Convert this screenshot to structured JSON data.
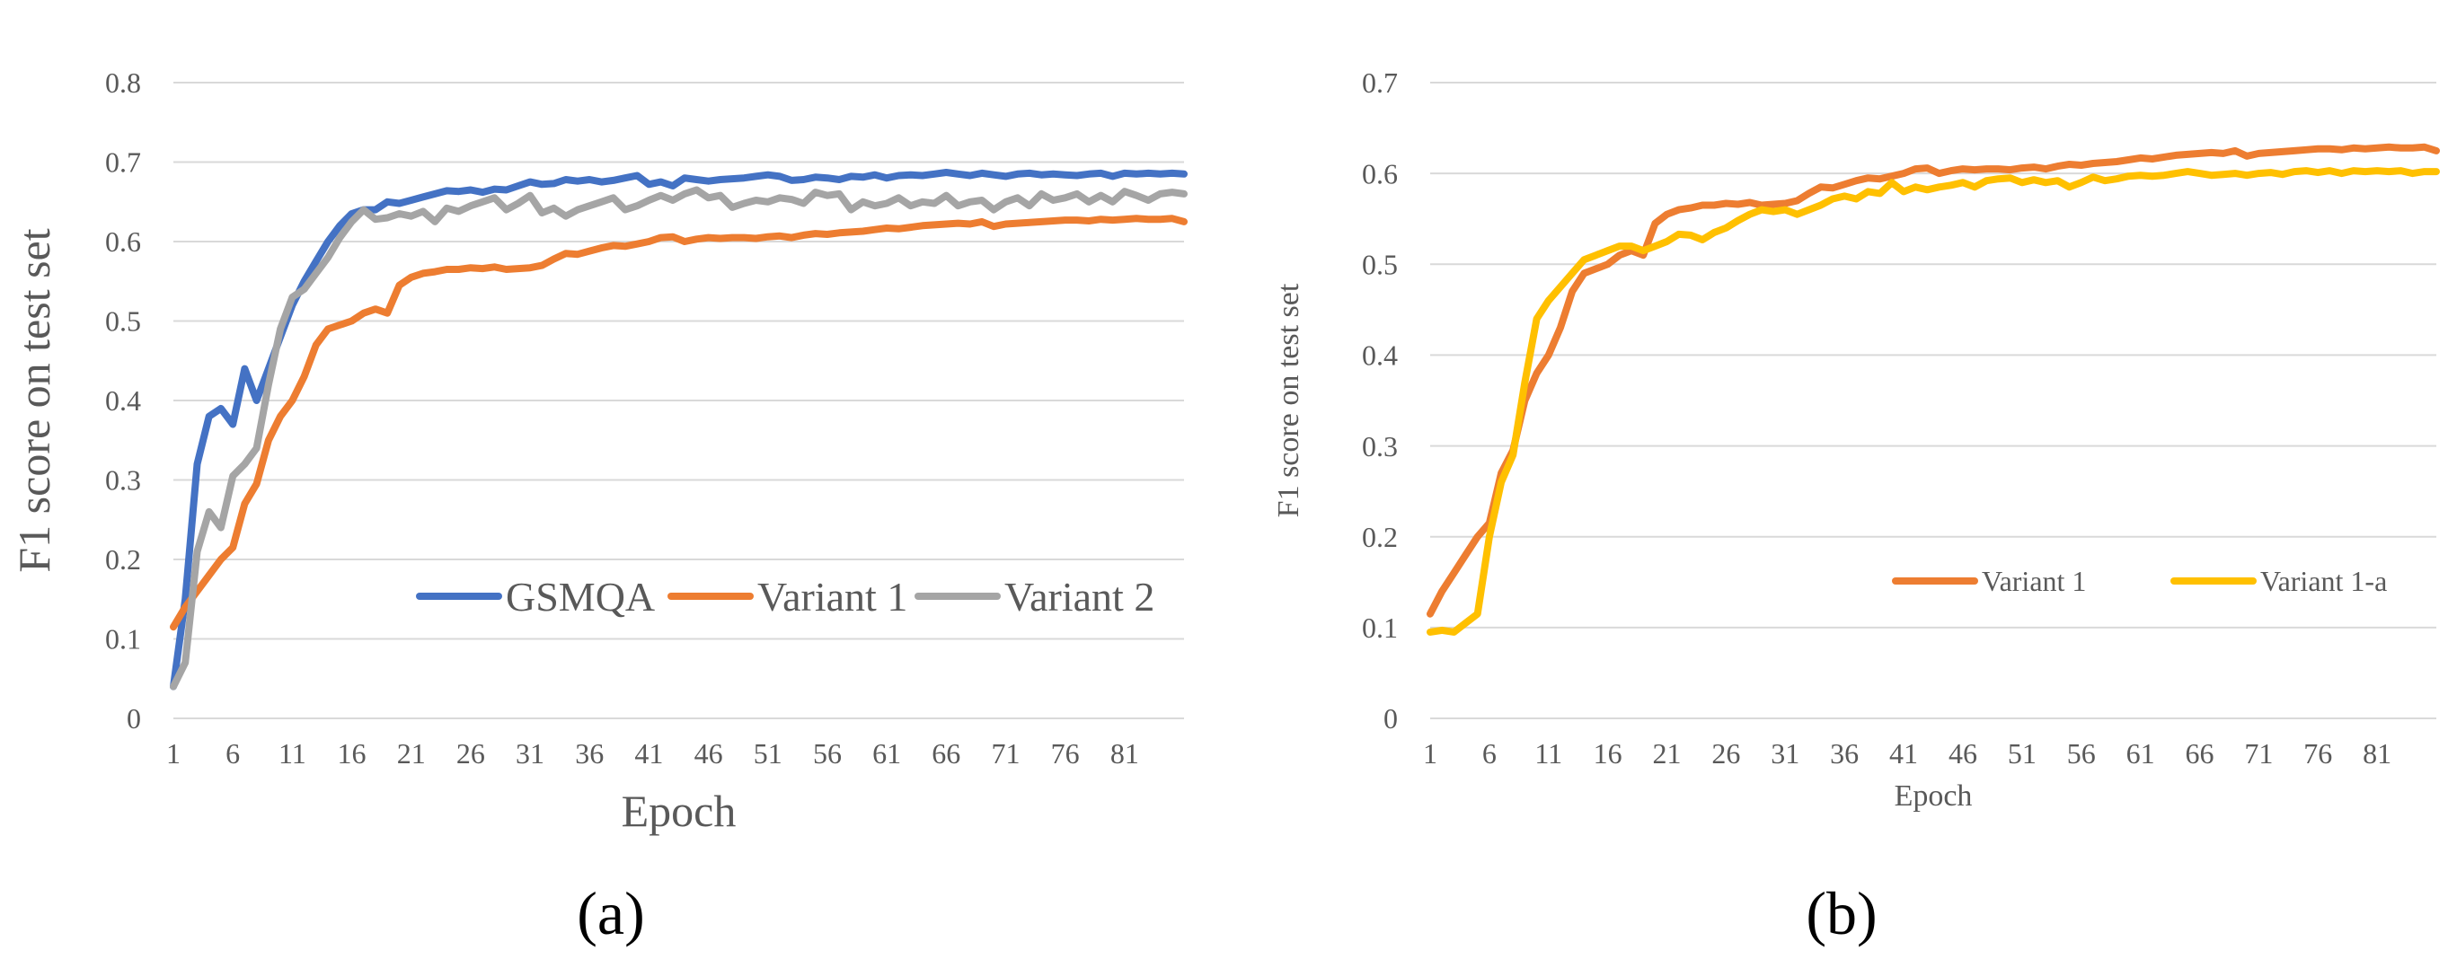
{
  "panels": {
    "a": "(a)",
    "b": "(b)"
  },
  "chart_data": [
    {
      "type": "line",
      "title": "",
      "xlabel": "Epoch",
      "ylabel": "F1 score on test set",
      "ylim": [
        0,
        0.8
      ],
      "yticks": [
        "0",
        "0.1",
        "0.2",
        "0.3",
        "0.4",
        "0.5",
        "0.6",
        "0.7",
        "0.8"
      ],
      "xticks": [
        "1",
        "6",
        "11",
        "16",
        "21",
        "26",
        "31",
        "36",
        "41",
        "46",
        "51",
        "56",
        "61",
        "66",
        "71",
        "76",
        "81"
      ],
      "xlim": [
        1,
        86
      ],
      "legend_position": "bottom-right",
      "series": [
        {
          "name": "GSMQA",
          "color": "#4472C4",
          "values": [
            0.04,
            0.15,
            0.32,
            0.38,
            0.39,
            0.37,
            0.44,
            0.4,
            0.44,
            0.48,
            0.52,
            0.55,
            0.575,
            0.6,
            0.62,
            0.635,
            0.64,
            0.64,
            0.65,
            0.648,
            0.652,
            0.656,
            0.66,
            0.664,
            0.663,
            0.665,
            0.662,
            0.666,
            0.665,
            0.67,
            0.675,
            0.672,
            0.673,
            0.678,
            0.676,
            0.678,
            0.675,
            0.677,
            0.68,
            0.683,
            0.672,
            0.675,
            0.67,
            0.68,
            0.678,
            0.676,
            0.678,
            0.679,
            0.68,
            0.682,
            0.684,
            0.682,
            0.677,
            0.678,
            0.681,
            0.68,
            0.678,
            0.682,
            0.681,
            0.684,
            0.68,
            0.683,
            0.684,
            0.683,
            0.685,
            0.687,
            0.685,
            0.683,
            0.686,
            0.684,
            0.682,
            0.685,
            0.686,
            0.684,
            0.685,
            0.684,
            0.683,
            0.685,
            0.686,
            0.682,
            0.686,
            0.685,
            0.686,
            0.685,
            0.686,
            0.685
          ]
        },
        {
          "name": "Variant 1",
          "color": "#ED7D31",
          "values": [
            0.115,
            0.14,
            0.16,
            0.18,
            0.2,
            0.215,
            0.27,
            0.295,
            0.35,
            0.38,
            0.4,
            0.43,
            0.47,
            0.49,
            0.495,
            0.5,
            0.51,
            0.515,
            0.51,
            0.545,
            0.555,
            0.56,
            0.562,
            0.565,
            0.565,
            0.567,
            0.566,
            0.568,
            0.565,
            0.566,
            0.567,
            0.57,
            0.578,
            0.585,
            0.584,
            0.588,
            0.592,
            0.595,
            0.594,
            0.597,
            0.6,
            0.605,
            0.606,
            0.6,
            0.603,
            0.605,
            0.604,
            0.605,
            0.605,
            0.604,
            0.606,
            0.607,
            0.605,
            0.608,
            0.61,
            0.609,
            0.611,
            0.612,
            0.613,
            0.615,
            0.617,
            0.616,
            0.618,
            0.62,
            0.621,
            0.622,
            0.623,
            0.622,
            0.625,
            0.619,
            0.622,
            0.623,
            0.624,
            0.625,
            0.626,
            0.627,
            0.627,
            0.626,
            0.628,
            0.627,
            0.628,
            0.629,
            0.628,
            0.628,
            0.629,
            0.625
          ]
        },
        {
          "name": "Variant 2",
          "color": "#A5A5A5",
          "values": [
            0.04,
            0.07,
            0.21,
            0.26,
            0.24,
            0.305,
            0.32,
            0.34,
            0.42,
            0.49,
            0.53,
            0.54,
            0.56,
            0.58,
            0.605,
            0.625,
            0.64,
            0.628,
            0.63,
            0.635,
            0.632,
            0.638,
            0.625,
            0.642,
            0.638,
            0.645,
            0.65,
            0.655,
            0.64,
            0.648,
            0.658,
            0.636,
            0.642,
            0.632,
            0.64,
            0.645,
            0.65,
            0.655,
            0.64,
            0.645,
            0.652,
            0.658,
            0.652,
            0.66,
            0.665,
            0.655,
            0.658,
            0.643,
            0.648,
            0.652,
            0.65,
            0.655,
            0.653,
            0.648,
            0.662,
            0.658,
            0.66,
            0.64,
            0.65,
            0.645,
            0.648,
            0.655,
            0.645,
            0.65,
            0.648,
            0.658,
            0.645,
            0.65,
            0.652,
            0.64,
            0.65,
            0.655,
            0.645,
            0.66,
            0.652,
            0.655,
            0.66,
            0.65,
            0.658,
            0.65,
            0.663,
            0.658,
            0.652,
            0.66,
            0.662,
            0.66
          ]
        }
      ]
    },
    {
      "type": "line",
      "title": "",
      "xlabel": "Epoch",
      "ylabel": "F1 score on test set",
      "ylim": [
        0,
        0.7
      ],
      "yticks": [
        "0",
        "0.1",
        "0.2",
        "0.3",
        "0.4",
        "0.5",
        "0.6",
        "0.7"
      ],
      "xticks": [
        "1",
        "6",
        "11",
        "16",
        "21",
        "26",
        "31",
        "36",
        "41",
        "46",
        "51",
        "56",
        "61",
        "66",
        "71",
        "76",
        "81"
      ],
      "xlim": [
        1,
        86
      ],
      "legend_position": "bottom-right",
      "series": [
        {
          "name": "Variant 1",
          "color": "#ED7D31",
          "values": [
            0.115,
            0.14,
            0.16,
            0.18,
            0.2,
            0.215,
            0.27,
            0.295,
            0.35,
            0.38,
            0.4,
            0.43,
            0.47,
            0.49,
            0.495,
            0.5,
            0.51,
            0.515,
            0.51,
            0.545,
            0.555,
            0.56,
            0.562,
            0.565,
            0.565,
            0.567,
            0.566,
            0.568,
            0.565,
            0.566,
            0.567,
            0.57,
            0.578,
            0.585,
            0.584,
            0.588,
            0.592,
            0.595,
            0.594,
            0.597,
            0.6,
            0.605,
            0.606,
            0.6,
            0.603,
            0.605,
            0.604,
            0.605,
            0.605,
            0.604,
            0.606,
            0.607,
            0.605,
            0.608,
            0.61,
            0.609,
            0.611,
            0.612,
            0.613,
            0.615,
            0.617,
            0.616,
            0.618,
            0.62,
            0.621,
            0.622,
            0.623,
            0.622,
            0.625,
            0.619,
            0.622,
            0.623,
            0.624,
            0.625,
            0.626,
            0.627,
            0.627,
            0.626,
            0.628,
            0.627,
            0.628,
            0.629,
            0.628,
            0.628,
            0.629,
            0.625
          ]
        },
        {
          "name": "Variant 1-a",
          "color": "#FFC000",
          "values": [
            0.095,
            0.097,
            0.095,
            0.105,
            0.115,
            0.2,
            0.26,
            0.29,
            0.37,
            0.44,
            0.46,
            0.475,
            0.49,
            0.505,
            0.51,
            0.515,
            0.52,
            0.52,
            0.515,
            0.52,
            0.525,
            0.533,
            0.532,
            0.527,
            0.535,
            0.54,
            0.548,
            0.555,
            0.56,
            0.558,
            0.56,
            0.555,
            0.56,
            0.565,
            0.572,
            0.575,
            0.572,
            0.58,
            0.578,
            0.59,
            0.58,
            0.585,
            0.582,
            0.585,
            0.587,
            0.59,
            0.585,
            0.592,
            0.594,
            0.595,
            0.59,
            0.593,
            0.59,
            0.592,
            0.585,
            0.59,
            0.596,
            0.592,
            0.594,
            0.597,
            0.598,
            0.597,
            0.598,
            0.6,
            0.602,
            0.6,
            0.598,
            0.599,
            0.6,
            0.598,
            0.6,
            0.601,
            0.599,
            0.602,
            0.603,
            0.601,
            0.603,
            0.6,
            0.603,
            0.602,
            0.603,
            0.602,
            0.603,
            0.6,
            0.602,
            0.602
          ]
        }
      ]
    }
  ]
}
